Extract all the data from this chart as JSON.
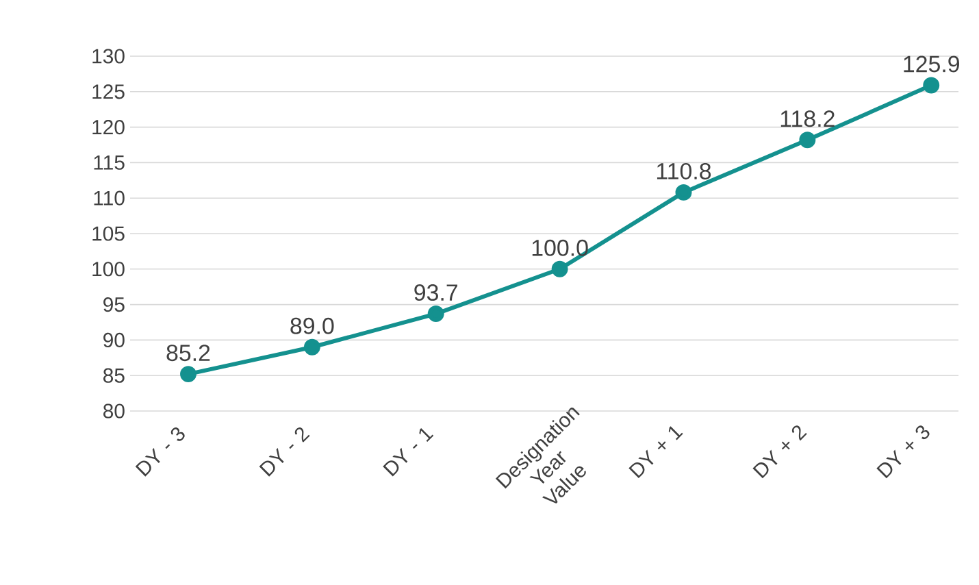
{
  "chart_data": {
    "type": "line",
    "categories": [
      "DY - 3",
      "DY - 2",
      "DY - 1",
      "Designation Year Value",
      "DY + 1",
      "DY + 2",
      "DY + 3"
    ],
    "values": [
      85.2,
      89.0,
      93.7,
      100.0,
      110.8,
      118.2,
      125.9
    ],
    "value_labels": [
      "85.2",
      "89.0",
      "93.7",
      "100.0",
      "110.8",
      "118.2",
      "125.9"
    ],
    "color": "#14918f",
    "ylim": [
      80,
      130
    ],
    "yticks": [
      80,
      85,
      90,
      95,
      100,
      105,
      110,
      115,
      120,
      125,
      130
    ],
    "grid": "y",
    "marker": "circle",
    "line_style": "solid"
  }
}
